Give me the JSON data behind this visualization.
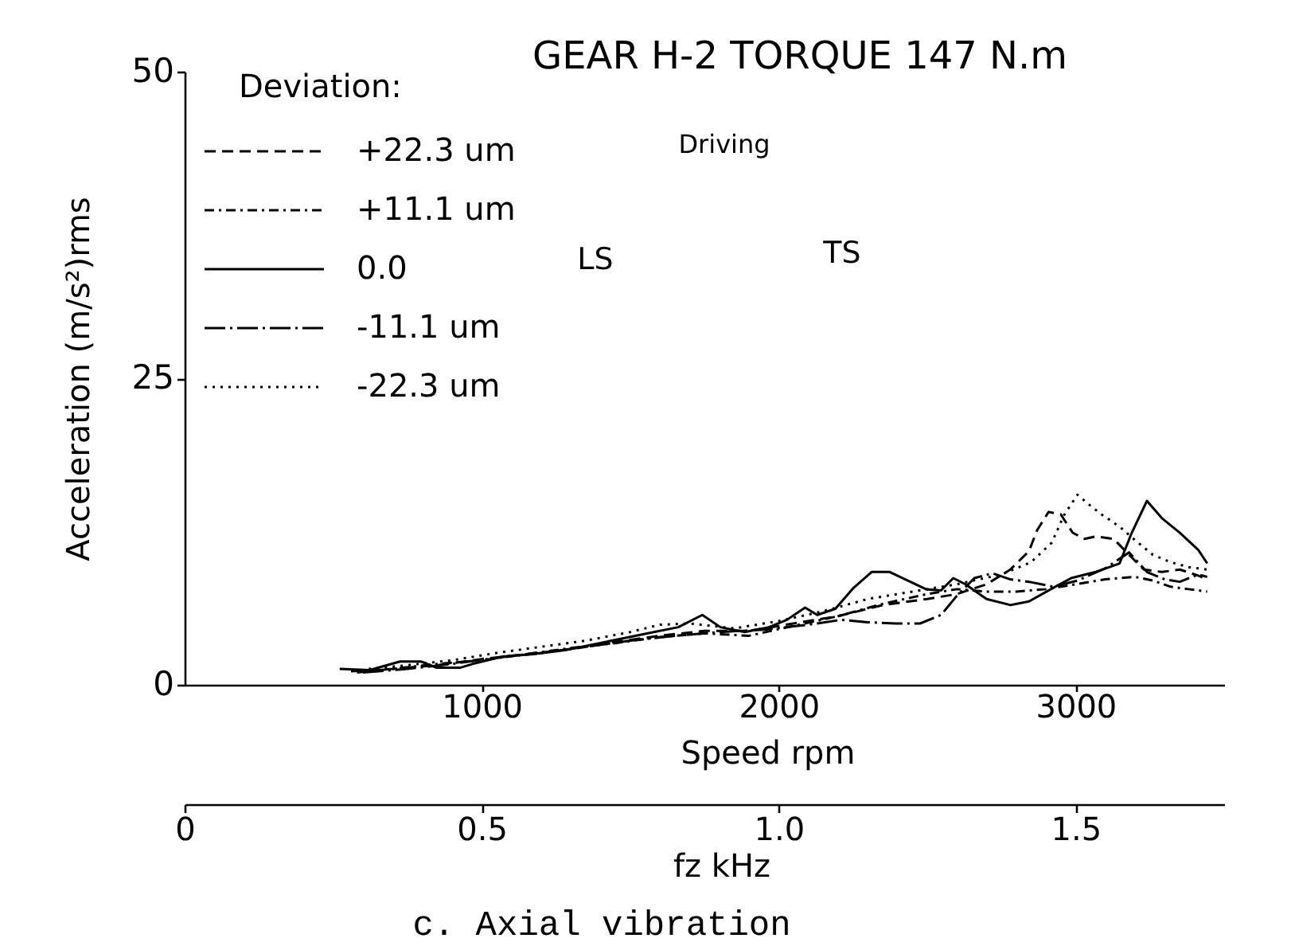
{
  "chart_data": {
    "type": "line",
    "title": "GEAR H-2 TORQUE 147 N.m",
    "xlabel": "Speed rpm",
    "ylabel": "Acceleration (m/s²)rms",
    "x2label": "fz kHz",
    "legend_title": "Deviation:",
    "annotations": [
      "Driving",
      "LS",
      "TS",
      "c. Axial vibration"
    ],
    "xlim": [
      0,
      3500
    ],
    "xticks": [
      1000,
      2000,
      3000
    ],
    "x2lim": [
      0,
      1.75
    ],
    "x2ticks": [
      0,
      {
        "value": 0.5,
        "label": "0.5"
      },
      {
        "value": 1,
        "label": "1.0"
      },
      {
        "value": 1.5,
        "label": "1.5"
      }
    ],
    "ylim": [
      0,
      50
    ],
    "yticks": [
      0,
      25,
      50
    ],
    "grid": false,
    "legend": "top left",
    "series": [
      {
        "name": "+22.3 um",
        "color": "#000000",
        "line_style": "dashed",
        "x": [
          560,
          700,
          850,
          1000,
          1150,
          1300,
          1450,
          1600,
          1750,
          1900,
          2050,
          2200,
          2350,
          2500,
          2600,
          2700,
          2780,
          2843,
          2870,
          2909,
          2950,
          2990,
          3030,
          3067,
          3128,
          3180,
          3230,
          3290,
          3351,
          3413,
          3443
        ],
        "values": [
          1.1,
          1.3,
          1.6,
          2.1,
          2.5,
          2.9,
          3.5,
          4.0,
          4.4,
          4.4,
          5.0,
          5.6,
          6.5,
          7.0,
          7.4,
          8.2,
          9.4,
          10.9,
          12.6,
          14.1,
          13.9,
          12.4,
          11.9,
          12.1,
          11.9,
          10.6,
          9.4,
          9.2,
          9.4,
          8.9,
          8.6
        ]
      },
      {
        "name": "+11.1 um",
        "color": "#000000",
        "line_style": "dashdot",
        "x": [
          580,
          700,
          850,
          1000,
          1150,
          1300,
          1450,
          1600,
          1750,
          1900,
          2050,
          2200,
          2350,
          2500,
          2600,
          2700,
          2800,
          2900,
          3000,
          3100,
          3200,
          3260,
          3320,
          3380,
          3443
        ],
        "values": [
          1.0,
          1.3,
          1.7,
          2.0,
          2.5,
          3.0,
          3.4,
          3.9,
          4.2,
          4.0,
          4.8,
          5.6,
          6.6,
          7.4,
          7.8,
          7.6,
          7.6,
          7.8,
          8.2,
          8.6,
          8.8,
          8.5,
          8.0,
          7.8,
          7.6
        ]
      },
      {
        "name": "0.0",
        "color": "#000000",
        "line_style": "solid",
        "x": [
          522,
          623,
          725,
          796,
          847,
          929,
          969,
          1071,
          1173,
          1275,
          1377,
          1478,
          1580,
          1662,
          1743,
          1804,
          1886,
          1967,
          2028,
          2089,
          2130,
          2191,
          2252,
          2313,
          2374,
          2435,
          2496,
          2547,
          2588,
          2629,
          2700,
          2781,
          2843,
          2924,
          2985,
          3067,
          3148,
          3189,
          3240,
          3290,
          3351,
          3413,
          3443
        ],
        "values": [
          1.3,
          1.2,
          1.9,
          1.9,
          1.4,
          1.4,
          1.7,
          2.3,
          2.5,
          2.8,
          3.3,
          3.8,
          4.3,
          4.7,
          5.7,
          4.7,
          4.3,
          4.7,
          5.3,
          6.3,
          5.7,
          6.2,
          7.9,
          9.2,
          9.2,
          8.5,
          7.8,
          7.7,
          8.7,
          8.2,
          7.0,
          6.5,
          6.8,
          7.9,
          8.7,
          9.2,
          9.9,
          12.4,
          15.0,
          13.6,
          12.4,
          11.0,
          9.9
        ]
      },
      {
        "name": "-11.1 um",
        "color": "#000000",
        "line_style": "longdashdot",
        "x": [
          600,
          750,
          900,
          1050,
          1200,
          1350,
          1500,
          1650,
          1800,
          1950,
          2100,
          2211,
          2300,
          2395,
          2476,
          2547,
          2598,
          2659,
          2720,
          2780,
          2843,
          2924,
          3006,
          3100,
          3180,
          3240,
          3300,
          3351,
          3413,
          3443
        ],
        "values": [
          1.0,
          1.3,
          1.7,
          2.2,
          2.6,
          3.1,
          3.6,
          4.0,
          4.3,
          4.5,
          4.9,
          5.3,
          5.1,
          5.0,
          5.0,
          5.7,
          7.2,
          8.7,
          9.1,
          8.6,
          8.4,
          8.0,
          8.5,
          9.5,
          10.8,
          9.2,
          8.6,
          8.4,
          9.0,
          8.8
        ]
      },
      {
        "name": "-22.3 um",
        "color": "#000000",
        "line_style": "dotted",
        "x": [
          620,
          750,
          900,
          1050,
          1200,
          1350,
          1500,
          1600,
          1700,
          1850,
          2000,
          2150,
          2300,
          2450,
          2600,
          2750,
          2850,
          2920,
          2960,
          3006,
          3050,
          3087,
          3148,
          3200,
          3260,
          3320,
          3380,
          3443
        ],
        "values": [
          1.3,
          1.6,
          2.0,
          2.6,
          3.1,
          3.6,
          4.3,
          4.9,
          5.0,
          4.6,
          5.2,
          6.0,
          7.0,
          7.6,
          8.2,
          9.0,
          10.0,
          11.6,
          13.8,
          15.5,
          14.6,
          13.9,
          12.9,
          11.8,
          10.6,
          10.0,
          9.6,
          9.4
        ]
      }
    ]
  }
}
